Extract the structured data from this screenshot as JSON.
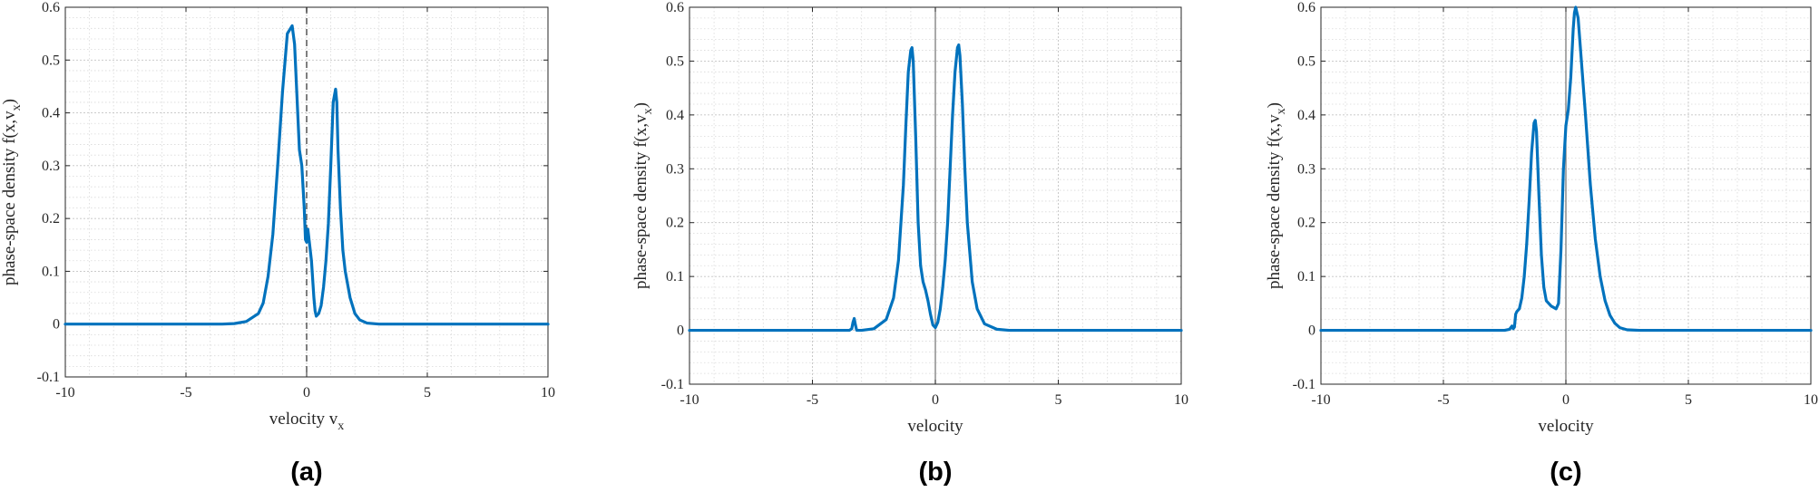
{
  "chart_data": [
    {
      "type": "line",
      "panel_label": "(a)",
      "xlabel": "velocity v",
      "xlabel_sub": "x",
      "ylabel": "phase-space density f(x,v",
      "ylabel_sub": "x",
      "ylabel_close": ")",
      "xlim": [
        -10,
        10
      ],
      "ylim": [
        -0.1,
        0.6
      ],
      "xticks": [
        "-10",
        "-5",
        "0",
        "5",
        "10"
      ],
      "yticks": [
        "-0.1",
        "0",
        "0.1",
        "0.2",
        "0.3",
        "0.4",
        "0.5",
        "0.6"
      ],
      "grid": true,
      "minor_grid": true,
      "zero_line": "dashed",
      "color": "#0072BD",
      "series": [
        {
          "x": [
            -10,
            -3.5,
            -3,
            -2.5,
            -2,
            -1.8,
            -1.6,
            -1.4,
            -1.2,
            -1.0,
            -0.8,
            -0.6,
            -0.5,
            -0.4,
            -0.3,
            -0.2,
            -0.1,
            -0.05,
            0,
            0.05,
            0.1,
            0.15,
            0.2,
            0.3,
            0.35,
            0.4,
            0.5,
            0.6,
            0.7,
            0.8,
            0.9,
            1.0,
            1.1,
            1.2,
            1.25,
            1.3,
            1.4,
            1.5,
            1.6,
            1.8,
            2.0,
            2.2,
            2.5,
            3.0,
            10
          ],
          "y": [
            0,
            0,
            0.001,
            0.005,
            0.02,
            0.04,
            0.09,
            0.17,
            0.3,
            0.44,
            0.55,
            0.565,
            0.53,
            0.43,
            0.33,
            0.3,
            0.22,
            0.16,
            0.155,
            0.18,
            0.16,
            0.14,
            0.12,
            0.05,
            0.025,
            0.015,
            0.02,
            0.035,
            0.07,
            0.12,
            0.19,
            0.3,
            0.42,
            0.445,
            0.42,
            0.33,
            0.22,
            0.14,
            0.1,
            0.05,
            0.02,
            0.008,
            0.002,
            0,
            0
          ]
        }
      ]
    },
    {
      "type": "line",
      "panel_label": "(b)",
      "xlabel": "velocity",
      "ylabel": "phase-space density f(x,v",
      "ylabel_sub": "x",
      "ylabel_close": ")",
      "xlim": [
        -10,
        10
      ],
      "ylim": [
        -0.1,
        0.6
      ],
      "xticks": [
        "-10",
        "-5",
        "0",
        "5",
        "10"
      ],
      "yticks": [
        "-0.1",
        "0",
        "0.1",
        "0.2",
        "0.3",
        "0.4",
        "0.5",
        "0.6"
      ],
      "grid": true,
      "minor_grid": true,
      "zero_line": "solid",
      "color": "#0072BD",
      "series": [
        {
          "x": [
            -10,
            -3.5,
            -3.4,
            -3.35,
            -3.3,
            -3.25,
            -3.2,
            -3.0,
            -2.5,
            -2.0,
            -1.7,
            -1.5,
            -1.3,
            -1.2,
            -1.1,
            -1.0,
            -0.95,
            -0.9,
            -0.8,
            -0.7,
            -0.6,
            -0.5,
            -0.4,
            -0.3,
            -0.2,
            -0.1,
            0,
            0.1,
            0.2,
            0.3,
            0.4,
            0.5,
            0.6,
            0.7,
            0.8,
            0.9,
            0.95,
            1.0,
            1.1,
            1.2,
            1.3,
            1.5,
            1.7,
            2.0,
            2.5,
            3.0,
            10
          ],
          "y": [
            0,
            0,
            0.003,
            0.015,
            0.022,
            0.01,
            0,
            0,
            0.003,
            0.02,
            0.06,
            0.13,
            0.27,
            0.38,
            0.48,
            0.52,
            0.525,
            0.5,
            0.36,
            0.2,
            0.12,
            0.09,
            0.075,
            0.055,
            0.03,
            0.01,
            0.005,
            0.015,
            0.04,
            0.08,
            0.13,
            0.2,
            0.3,
            0.4,
            0.48,
            0.525,
            0.53,
            0.51,
            0.42,
            0.3,
            0.2,
            0.09,
            0.04,
            0.012,
            0.002,
            0,
            0
          ]
        }
      ]
    },
    {
      "type": "line",
      "panel_label": "(c)",
      "xlabel": "velocity",
      "ylabel": "phase-space density f(x,v",
      "ylabel_sub": "x",
      "ylabel_close": ")",
      "xlim": [
        -10,
        10
      ],
      "ylim": [
        -0.1,
        0.6
      ],
      "xticks": [
        "-10",
        "-5",
        "0",
        "5",
        "10"
      ],
      "yticks": [
        "-0.1",
        "0",
        "0.1",
        "0.2",
        "0.3",
        "0.4",
        "0.5",
        "0.6"
      ],
      "grid": true,
      "minor_grid": true,
      "zero_line": "solid",
      "color": "#0072BD",
      "series": [
        {
          "x": [
            -10,
            -2.5,
            -2.3,
            -2.2,
            -2.15,
            -2.1,
            -2.05,
            -2.0,
            -1.9,
            -1.8,
            -1.7,
            -1.6,
            -1.5,
            -1.4,
            -1.3,
            -1.25,
            -1.2,
            -1.1,
            -1.0,
            -0.9,
            -0.8,
            -0.6,
            -0.4,
            -0.3,
            -0.2,
            -0.1,
            0,
            0.1,
            0.2,
            0.3,
            0.35,
            0.4,
            0.5,
            0.6,
            0.8,
            1.0,
            1.2,
            1.4,
            1.6,
            1.8,
            2.0,
            2.2,
            2.5,
            3.0,
            10
          ],
          "y": [
            0,
            0,
            0.002,
            0.008,
            0.003,
            0.006,
            0.03,
            0.035,
            0.04,
            0.06,
            0.1,
            0.16,
            0.24,
            0.33,
            0.385,
            0.39,
            0.37,
            0.25,
            0.14,
            0.08,
            0.055,
            0.045,
            0.04,
            0.05,
            0.15,
            0.3,
            0.38,
            0.41,
            0.47,
            0.56,
            0.59,
            0.6,
            0.58,
            0.52,
            0.4,
            0.27,
            0.17,
            0.1,
            0.055,
            0.028,
            0.013,
            0.005,
            0.001,
            0,
            0
          ]
        }
      ]
    }
  ]
}
